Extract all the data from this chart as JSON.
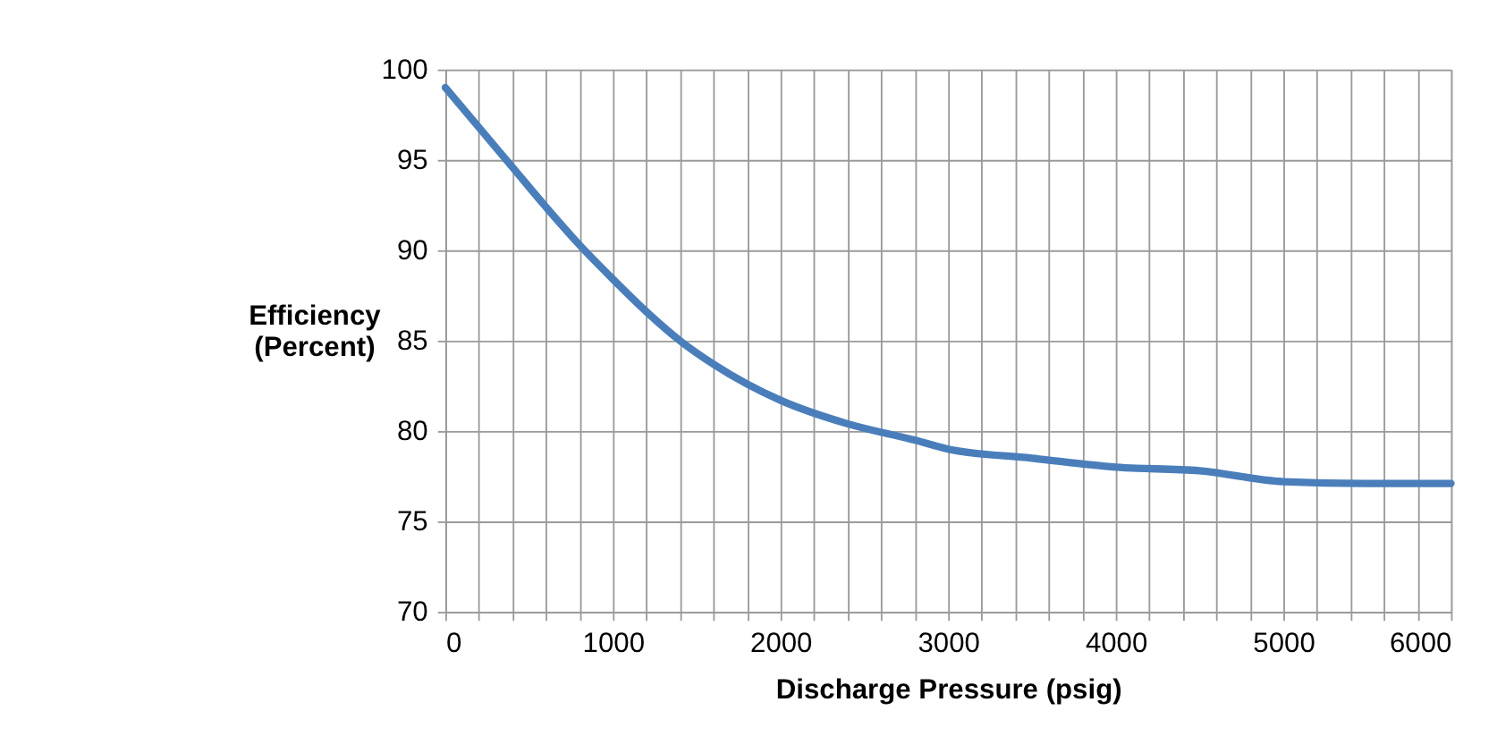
{
  "chart_data": {
    "type": "line",
    "xlabel": "Discharge Pressure (psig)",
    "ylabel": "Efficiency\n(Percent)",
    "x": [
      0,
      200,
      400,
      600,
      800,
      1000,
      1200,
      1400,
      1600,
      1800,
      2000,
      2400,
      2800,
      3000,
      3500,
      4000,
      4500,
      5000,
      5500,
      6000
    ],
    "series": [
      {
        "color": "#4a7ebb",
        "values": [
          99,
          96.8,
          94.6,
          92.4,
          90.3,
          88.4,
          86.6,
          85.0,
          83.7,
          82.6,
          81.7,
          80.4,
          79.5,
          79.0,
          78.5,
          78.0,
          77.8,
          77.2,
          77.1,
          77.1
        ]
      }
    ],
    "xlim": [
      0,
      6000
    ],
    "ylim": [
      70,
      100
    ],
    "xticks": [
      0,
      {
        "value": 200,
        "label": null
      },
      {
        "value": 400,
        "label": null
      },
      {
        "value": 600,
        "label": null
      },
      {
        "value": 800,
        "label": null
      },
      1000,
      {
        "value": 1200,
        "label": null
      },
      {
        "value": 1400,
        "label": null
      },
      {
        "value": 1600,
        "label": null
      },
      {
        "value": 1800,
        "label": null
      },
      2000,
      {
        "value": 2200,
        "label": null
      },
      {
        "value": 2400,
        "label": null
      },
      {
        "value": 2600,
        "label": null
      },
      {
        "value": 2800,
        "label": null
      },
      3000,
      {
        "value": 3200,
        "label": null
      },
      {
        "value": 3400,
        "label": null
      },
      {
        "value": 3600,
        "label": null
      },
      {
        "value": 3800,
        "label": null
      },
      4000,
      {
        "value": 4200,
        "label": null
      },
      {
        "value": 4400,
        "label": null
      },
      {
        "value": 4600,
        "label": null
      },
      {
        "value": 4800,
        "label": null
      },
      5000,
      {
        "value": 5200,
        "label": null
      },
      {
        "value": 5400,
        "label": null
      },
      {
        "value": 5600,
        "label": null
      },
      {
        "value": 5800,
        "label": null
      },
      6000
    ],
    "yticks": [
      70,
      75,
      80,
      85,
      90,
      95,
      100
    ],
    "grid": true,
    "line_style": "solid"
  }
}
